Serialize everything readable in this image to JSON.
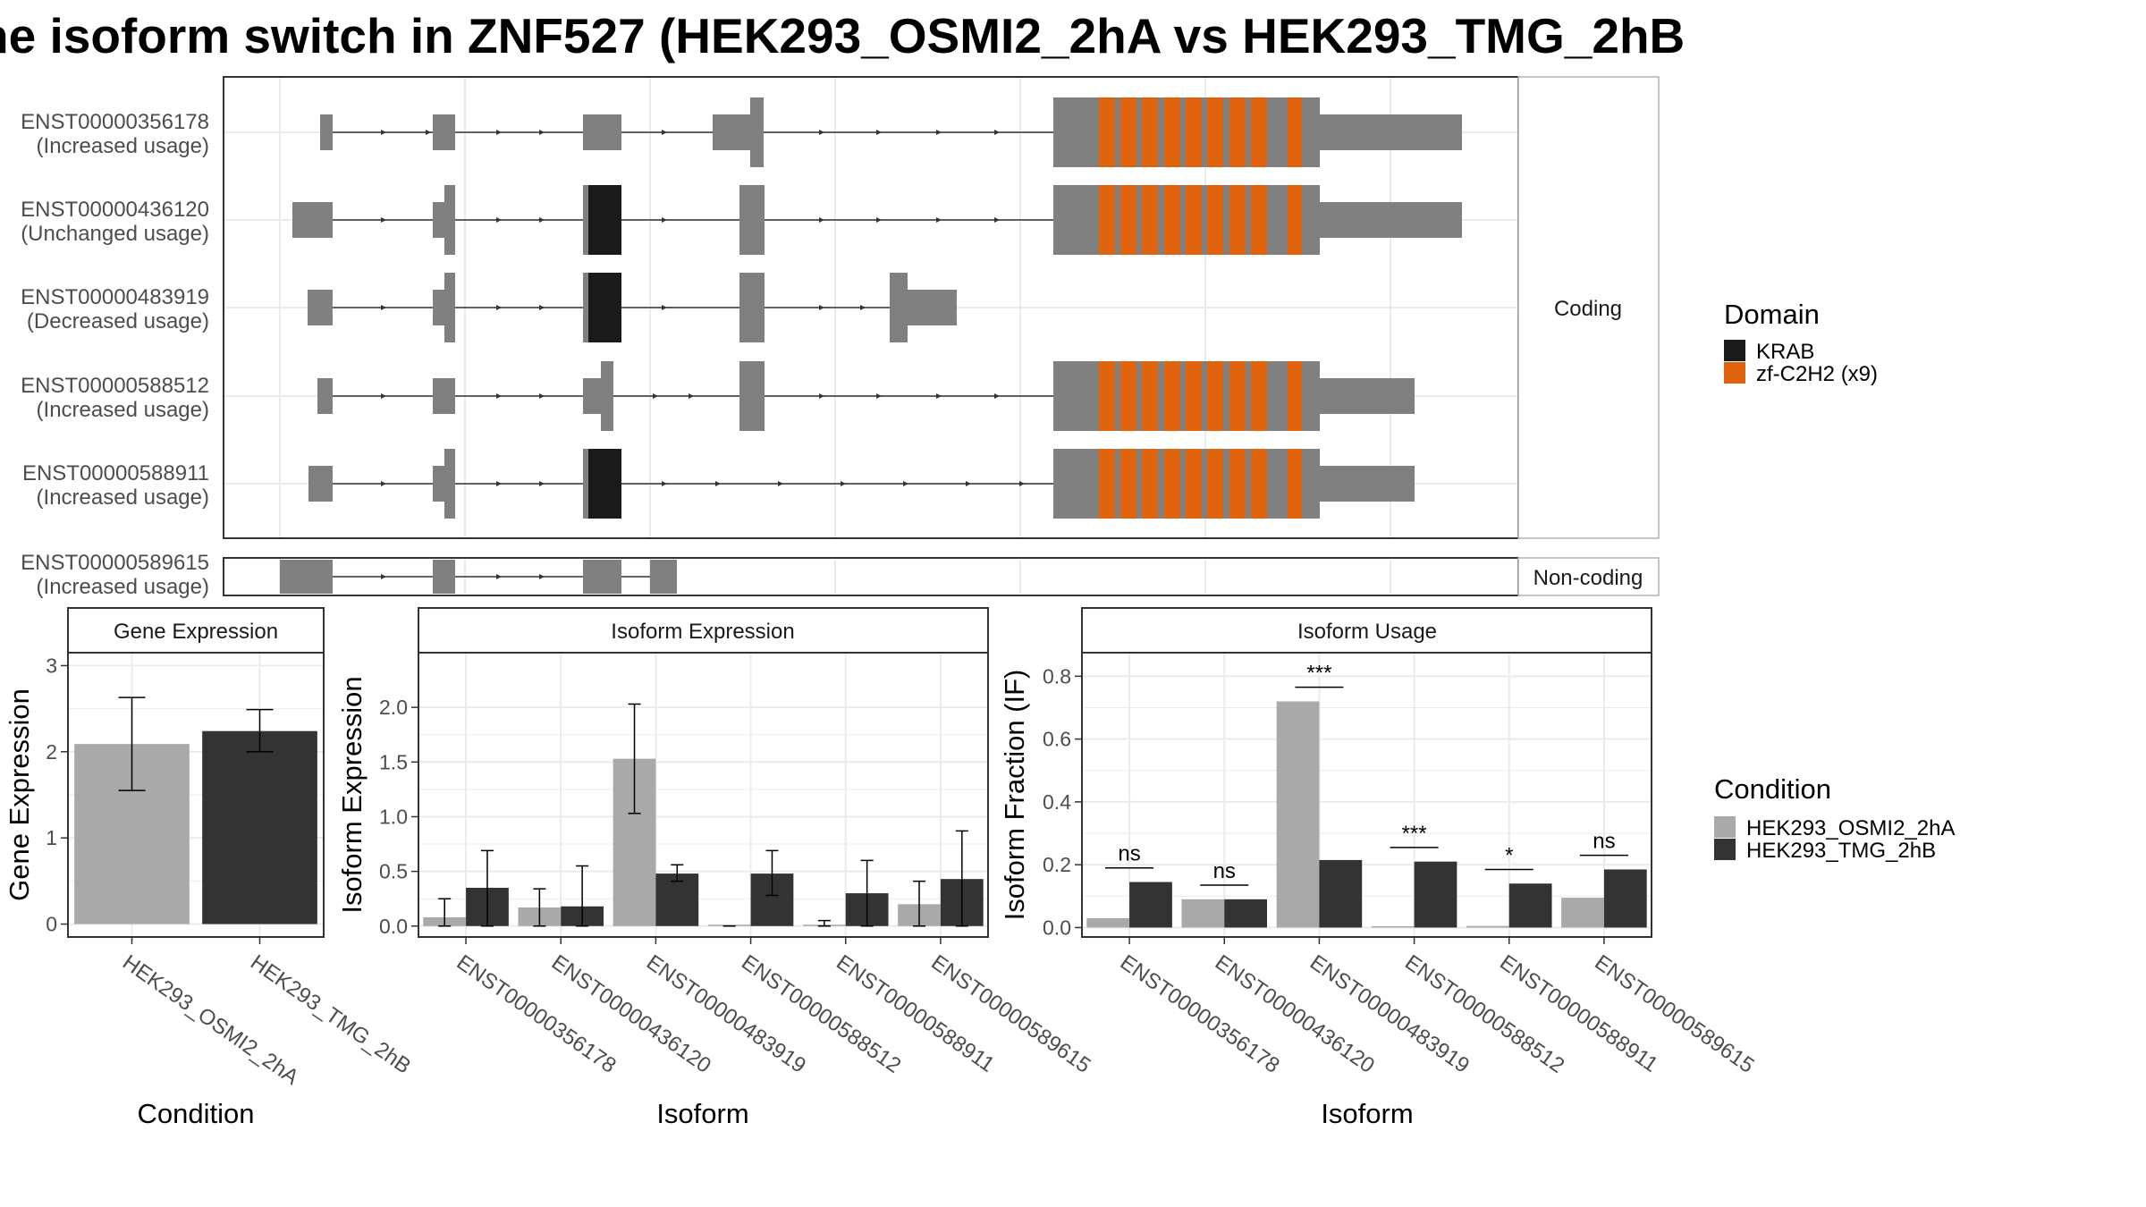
{
  "page_title": "he isoform switch in ZNF527 (HEK293_OSMI2_2hA vs HEK293_TMG_2hB",
  "colors": {
    "exon": "#808080",
    "KRAB": "#1a1a1a",
    "zf": "#e0640e",
    "cond_a": "#a9a9a9",
    "cond_b": "#333333",
    "panel_border": "#333333",
    "grid": "#ebebeb"
  },
  "transcript_panel": {
    "facets": [
      {
        "label": "Coding"
      },
      {
        "label": "Non-coding"
      }
    ],
    "transcripts": [
      {
        "id": "ENST00000356178",
        "usage": "(Increased usage)",
        "facet": 0
      },
      {
        "id": "ENST00000436120",
        "usage": "(Unchanged usage)",
        "facet": 0
      },
      {
        "id": "ENST00000483919",
        "usage": "(Decreased usage)",
        "facet": 0
      },
      {
        "id": "ENST00000588512",
        "usage": "(Increased usage)",
        "facet": 0
      },
      {
        "id": "ENST00000588911",
        "usage": "(Increased usage)",
        "facet": 0
      },
      {
        "id": "ENST00000589615",
        "usage": "(Increased usage)",
        "facet": 1
      }
    ]
  },
  "domain_legend": {
    "title": "Domain",
    "items": [
      {
        "label": "KRAB",
        "color": "#1a1a1a"
      },
      {
        "label": "zf-C2H2 (x9)",
        "color": "#e0640e"
      }
    ]
  },
  "condition_legend": {
    "title": "Condition",
    "items": [
      {
        "label": "HEK293_OSMI2_2hA",
        "color": "#a9a9a9"
      },
      {
        "label": "HEK293_TMG_2hB",
        "color": "#333333"
      }
    ]
  },
  "chart_data": [
    {
      "type": "bar",
      "title": "Gene Expression",
      "xlabel": "Condition",
      "ylabel": "Gene Expression",
      "ylim": [
        -0.15,
        3.15
      ],
      "yticks": [
        0,
        1,
        2,
        3
      ],
      "categories": [
        "HEK293_OSMI2_2hA",
        "HEK293_TMG_2hB"
      ],
      "values": [
        2.09,
        2.24
      ],
      "errors": [
        [
          1.55,
          2.63
        ],
        [
          2.0,
          2.49
        ]
      ],
      "colors": [
        "#a9a9a9",
        "#333333"
      ]
    },
    {
      "type": "bar",
      "title": "Isoform Expression",
      "xlabel": "Isoform",
      "ylabel": "Isoform Expression",
      "ylim": [
        -0.1,
        2.5
      ],
      "yticks": [
        0.0,
        0.5,
        1.0,
        1.5,
        2.0
      ],
      "categories": [
        "ENST00000356178",
        "ENST00000436120",
        "ENST00000483919",
        "ENST00000588512",
        "ENST00000588911",
        "ENST00000589615"
      ],
      "series": [
        {
          "name": "HEK293_OSMI2_2hA",
          "values": [
            0.08,
            0.17,
            1.53,
            0.0,
            0.01,
            0.2
          ],
          "errors": [
            [
              0.0,
              0.25
            ],
            [
              0.0,
              0.34
            ],
            [
              1.03,
              2.03
            ],
            [
              0.0,
              0.0
            ],
            [
              0.0,
              0.05
            ],
            [
              0.0,
              0.41
            ]
          ]
        },
        {
          "name": "HEK293_TMG_2hB",
          "values": [
            0.35,
            0.18,
            0.48,
            0.48,
            0.3,
            0.43
          ],
          "errors": [
            [
              0.0,
              0.69
            ],
            [
              0.0,
              0.55
            ],
            [
              0.41,
              0.56
            ],
            [
              0.28,
              0.69
            ],
            [
              0.0,
              0.6
            ],
            [
              0.0,
              0.87
            ]
          ]
        }
      ]
    },
    {
      "type": "bar",
      "title": "Isoform Usage",
      "xlabel": "Isoform",
      "ylabel": "Isoform Fraction (IF)",
      "ylim": [
        -0.03,
        0.875
      ],
      "yticks": [
        0.0,
        0.2,
        0.4,
        0.6,
        0.8
      ],
      "categories": [
        "ENST00000356178",
        "ENST00000436120",
        "ENST00000483919",
        "ENST00000588512",
        "ENST00000588911",
        "ENST00000589615"
      ],
      "series": [
        {
          "name": "HEK293_OSMI2_2hA",
          "values": [
            0.03,
            0.09,
            0.72,
            0.0,
            0.005,
            0.095
          ]
        },
        {
          "name": "HEK293_TMG_2hB",
          "values": [
            0.145,
            0.09,
            0.215,
            0.21,
            0.14,
            0.185
          ]
        }
      ],
      "significance": [
        "ns",
        "ns",
        "***",
        "***",
        "*",
        "ns"
      ]
    }
  ]
}
